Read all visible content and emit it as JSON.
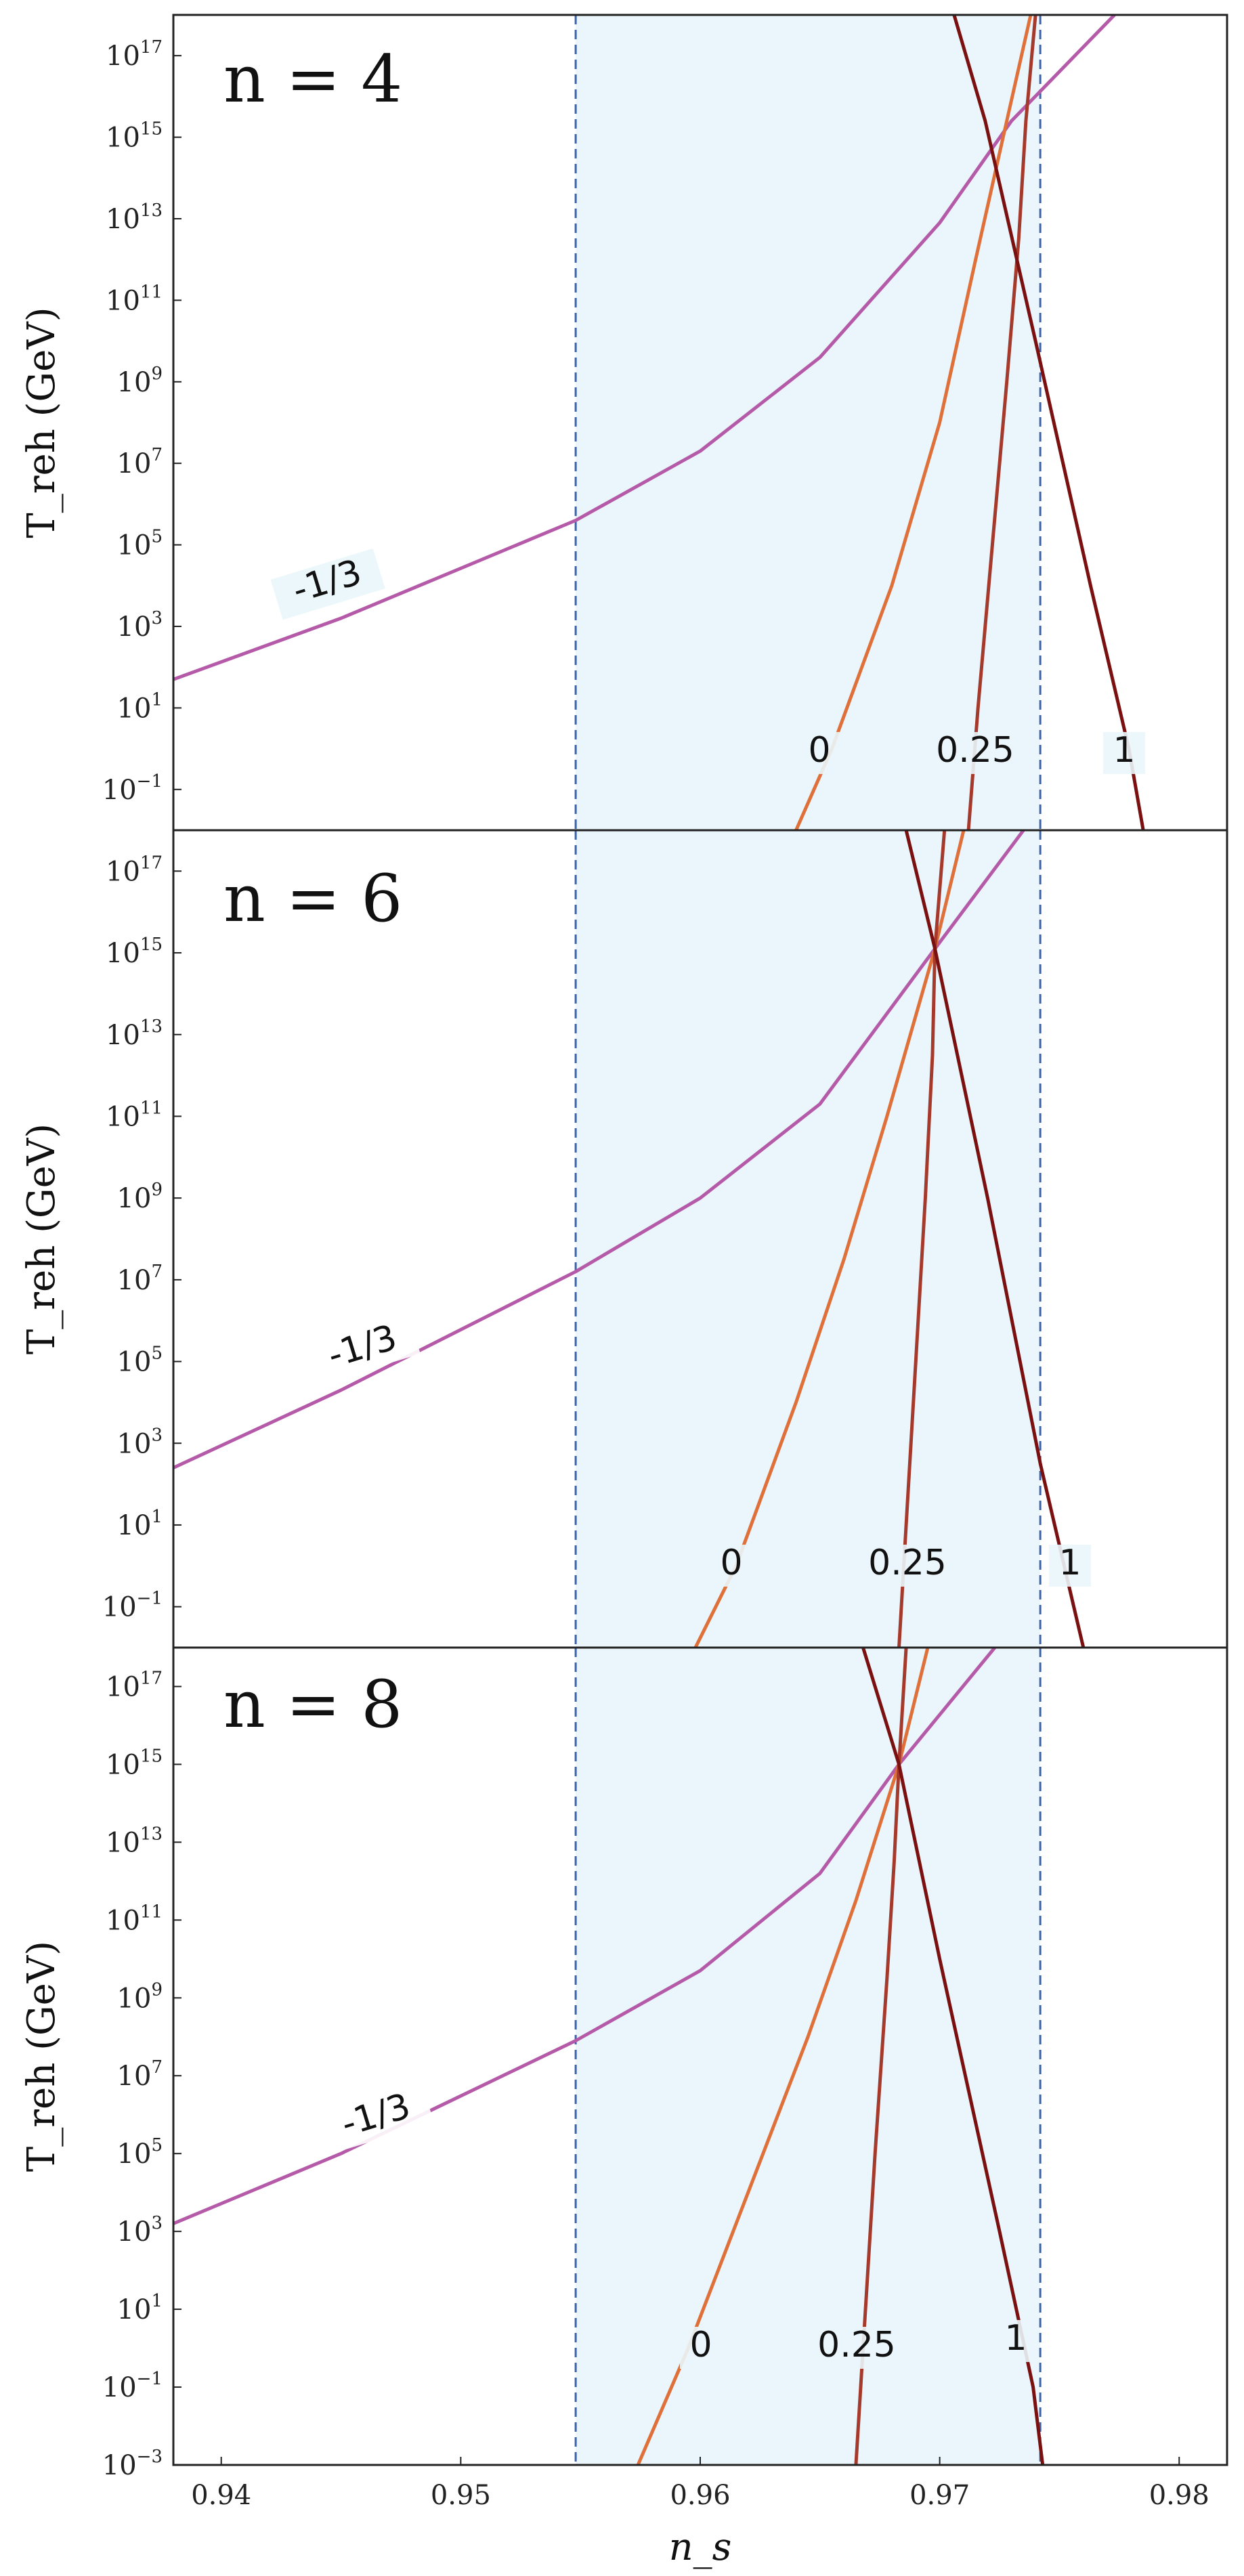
{
  "chart_data": [
    {
      "type": "line",
      "title": "n = 4",
      "ylabel": "T_reh (GeV)",
      "xlabel": "",
      "xlim": [
        0.938,
        0.982
      ],
      "ylim_log10": [
        -2.0,
        18.0
      ],
      "yscale": "log",
      "x_ticks": [],
      "y_tick_labels": [
        "10^-1",
        "10^1",
        "10^3",
        "10^5",
        "10^7",
        "10^9",
        "10^11",
        "10^13",
        "10^15",
        "10^17"
      ],
      "shaded_band": [
        0.9548,
        0.9742
      ],
      "band_color": "#eaf6fb",
      "line_style_band_edges": "dashed",
      "series": [
        {
          "name": "-1/3",
          "color": "#b45aa8",
          "log10_T": [
            [
              0.938,
              1.7
            ],
            [
              0.945,
              3.2
            ],
            [
              0.9548,
              5.6
            ],
            [
              0.96,
              7.3
            ],
            [
              0.965,
              9.6
            ],
            [
              0.97,
              12.9
            ],
            [
              0.973,
              15.4
            ],
            [
              0.9773,
              18.0
            ]
          ]
        },
        {
          "name": "0",
          "color": "#e0703a",
          "log10_T": [
            [
              0.964,
              -2.0
            ],
            [
              0.9655,
              0.0
            ],
            [
              0.968,
              4.0
            ],
            [
              0.97,
              8.0
            ],
            [
              0.9715,
              12.0
            ],
            [
              0.9728,
              15.4
            ],
            [
              0.9738,
              18.0
            ]
          ]
        },
        {
          "name": "0.25",
          "color": "#a53a2c",
          "log10_T": [
            [
              0.9712,
              -2.0
            ],
            [
              0.9716,
              1.0
            ],
            [
              0.9722,
              5.0
            ],
            [
              0.9728,
              9.0
            ],
            [
              0.9733,
              12.5
            ],
            [
              0.9736,
              15.4
            ],
            [
              0.974,
              18.0
            ]
          ]
        },
        {
          "name": "1",
          "color": "#7a1010",
          "log10_T": [
            [
              0.9706,
              18.0
            ],
            [
              0.9719,
              15.4
            ],
            [
              0.974,
              10.0
            ],
            [
              0.9763,
              4.0
            ],
            [
              0.9779,
              0.0
            ],
            [
              0.9785,
              -2.0
            ]
          ]
        }
      ],
      "labels": [
        "n = 4",
        "-1/3",
        "0",
        "0.25",
        "1"
      ]
    },
    {
      "type": "line",
      "title": "n = 6",
      "ylabel": "T_reh (GeV)",
      "xlabel": "",
      "xlim": [
        0.938,
        0.982
      ],
      "ylim_log10": [
        -2.0,
        18.0
      ],
      "yscale": "log",
      "x_ticks": [],
      "y_tick_labels": [
        "10^-1",
        "10^1",
        "10^3",
        "10^5",
        "10^7",
        "10^9",
        "10^11",
        "10^13",
        "10^15",
        "10^17"
      ],
      "shaded_band": [
        0.9548,
        0.9742
      ],
      "band_color": "#eaf6fb",
      "line_style_band_edges": "dashed",
      "series": [
        {
          "name": "-1/3",
          "color": "#b45aa8",
          "log10_T": [
            [
              0.938,
              2.4
            ],
            [
              0.945,
              4.3
            ],
            [
              0.9548,
              7.2
            ],
            [
              0.96,
              9.0
            ],
            [
              0.965,
              11.3
            ],
            [
              0.9698,
              15.1
            ],
            [
              0.9735,
              18.0
            ]
          ]
        },
        {
          "name": "0",
          "color": "#e0703a",
          "log10_T": [
            [
              0.9598,
              -2.0
            ],
            [
              0.9615,
              0.0
            ],
            [
              0.964,
              4.0
            ],
            [
              0.966,
              7.5
            ],
            [
              0.9678,
              11.0
            ],
            [
              0.9698,
              15.1
            ],
            [
              0.971,
              18.0
            ]
          ]
        },
        {
          "name": "0.25",
          "color": "#a53a2c",
          "log10_T": [
            [
              0.9683,
              -2.0
            ],
            [
              0.9686,
              1.0
            ],
            [
              0.969,
              5.0
            ],
            [
              0.9694,
              9.0
            ],
            [
              0.9697,
              12.5
            ],
            [
              0.9698,
              15.1
            ],
            [
              0.9702,
              18.0
            ]
          ]
        },
        {
          "name": "1",
          "color": "#7a1010",
          "log10_T": [
            [
              0.9686,
              18.0
            ],
            [
              0.9698,
              15.1
            ],
            [
              0.972,
              9.0
            ],
            [
              0.9742,
              2.5
            ],
            [
              0.9752,
              0.0
            ],
            [
              0.976,
              -2.0
            ]
          ]
        }
      ],
      "labels": [
        "n = 6",
        "-1/3",
        "0",
        "0.25",
        "1"
      ]
    },
    {
      "type": "line",
      "title": "n = 8",
      "ylabel": "T_reh (GeV)",
      "xlabel": "n_s",
      "xlim": [
        0.938,
        0.982
      ],
      "ylim_log10": [
        -3.0,
        18.0
      ],
      "yscale": "log",
      "x_ticks": [
        "0.94",
        "0.95",
        "0.96",
        "0.97",
        "0.98"
      ],
      "x_tick_values": [
        0.94,
        0.95,
        0.96,
        0.97,
        0.98
      ],
      "y_tick_labels": [
        "10^-3",
        "10^-1",
        "10^1",
        "10^3",
        "10^5",
        "10^7",
        "10^9",
        "10^11",
        "10^13",
        "10^15",
        "10^17"
      ],
      "shaded_band": [
        0.9548,
        0.9742
      ],
      "band_color": "#eaf6fb",
      "line_style_band_edges": "dashed",
      "series": [
        {
          "name": "-1/3",
          "color": "#b45aa8",
          "log10_T": [
            [
              0.938,
              3.2
            ],
            [
              0.945,
              5.0
            ],
            [
              0.9548,
              7.9
            ],
            [
              0.96,
              9.7
            ],
            [
              0.965,
              12.2
            ],
            [
              0.9683,
              15.0
            ],
            [
              0.9723,
              18.0
            ]
          ]
        },
        {
          "name": "0",
          "color": "#e0703a",
          "log10_T": [
            [
              0.9574,
              -3.0
            ],
            [
              0.9595,
              0.0
            ],
            [
              0.962,
              4.0
            ],
            [
              0.9645,
              8.0
            ],
            [
              0.9665,
              11.5
            ],
            [
              0.9683,
              15.0
            ],
            [
              0.9695,
              18.0
            ]
          ]
        },
        {
          "name": "0.25",
          "color": "#a53a2c",
          "log10_T": [
            [
              0.9665,
              -3.0
            ],
            [
              0.9668,
              0.0
            ],
            [
              0.9673,
              5.0
            ],
            [
              0.9678,
              9.5
            ],
            [
              0.9681,
              12.5
            ],
            [
              0.9683,
              15.0
            ],
            [
              0.9686,
              18.0
            ]
          ]
        },
        {
          "name": "1",
          "color": "#7a1010",
          "log10_T": [
            [
              0.9668,
              18.0
            ],
            [
              0.9683,
              15.0
            ],
            [
              0.97,
              10.0
            ],
            [
              0.9725,
              3.0
            ],
            [
              0.9739,
              -1.0
            ],
            [
              0.9743,
              -3.0
            ]
          ]
        }
      ],
      "labels": [
        "n = 8",
        "-1/3",
        "0",
        "0.25",
        "1"
      ]
    }
  ]
}
